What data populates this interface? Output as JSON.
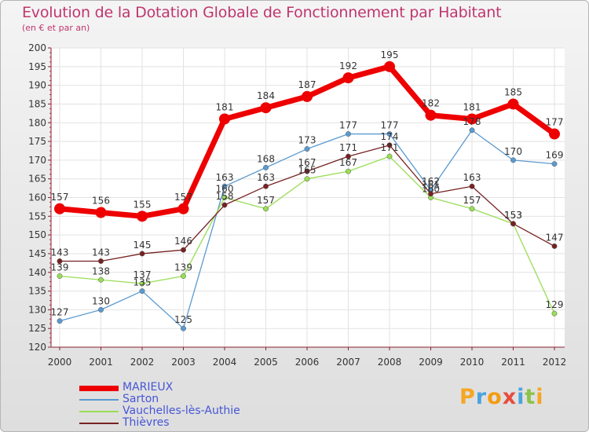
{
  "header": {
    "title": "Evolution de la Dotation Globale de Fonctionnement par Habitant",
    "subtitle": "(en € et par an)"
  },
  "brand": {
    "text": "Proxiti"
  },
  "chart_data": {
    "type": "line",
    "title": "Evolution de la Dotation Globale de Fonctionnement par Habitant",
    "subtitle": "(en € et par an)",
    "xlabel": "",
    "ylabel": "",
    "x": [
      "2000",
      "2001",
      "2002",
      "2003",
      "2004",
      "2005",
      "2006",
      "2007",
      "2008",
      "2009",
      "2010",
      "2011",
      "2012"
    ],
    "ylim": [
      120,
      200
    ],
    "yticks": [
      120,
      125,
      130,
      135,
      140,
      145,
      150,
      155,
      160,
      165,
      170,
      175,
      180,
      185,
      190,
      195,
      200
    ],
    "grid": true,
    "legend_position": "bottom-left",
    "series": [
      {
        "name": "MARIEUX",
        "color": "#ee0000",
        "values": [
          157,
          156,
          155,
          157,
          181,
          184,
          187,
          192,
          195,
          182,
          181,
          185,
          177
        ]
      },
      {
        "name": "Sarton",
        "color": "#5a9ad0",
        "values": [
          127,
          130,
          135,
          125,
          163,
          168,
          173,
          177,
          177,
          162,
          178,
          170,
          169
        ]
      },
      {
        "name": "Vauchelles-lès-Authie",
        "color": "#99dd55",
        "values": [
          139,
          138,
          137,
          139,
          160,
          157,
          165,
          167,
          171,
          160,
          157,
          153,
          129
        ]
      },
      {
        "name": "Thièvres",
        "color": "#772222",
        "values": [
          143,
          143,
          145,
          146,
          158,
          163,
          167,
          171,
          174,
          161,
          163,
          153,
          147
        ]
      }
    ]
  }
}
